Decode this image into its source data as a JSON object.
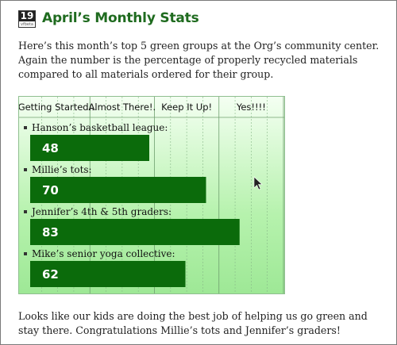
{
  "header": {
    "calendar_day": "19",
    "calendar_sub": "vfbeta",
    "title": "April’s Monthly Stats"
  },
  "intro": "Here’s this month’s top 5 green groups at the Org’s community center. Again the number is the percentage of properly recycled materials compared to all materials ordered for their group.",
  "outro": "Looks like our kids are doing the best job of helping us go green and stay there. Congratulations Millie’s tots and Jennifer’s graders!",
  "colors": {
    "bar": "#0b6b0b",
    "title": "#1f6b1f",
    "chart_bg_top": "#f4fff2",
    "chart_bg_bottom": "#9ee896"
  },
  "chart_data": {
    "type": "bar",
    "orientation": "horizontal",
    "scale_labels": [
      "Getting Started...",
      "Almost There!.",
      "Keep It Up!",
      "Yes!!!!"
    ],
    "categories": [
      "Hanson’s basketball league:",
      "Millie’s tots:",
      "Jennifer’s 4th & 5th graders:",
      "Mike’s senior yoga collective:"
    ],
    "values": [
      48,
      70,
      83,
      62
    ],
    "xlim": [
      0,
      100
    ],
    "grid": true
  }
}
